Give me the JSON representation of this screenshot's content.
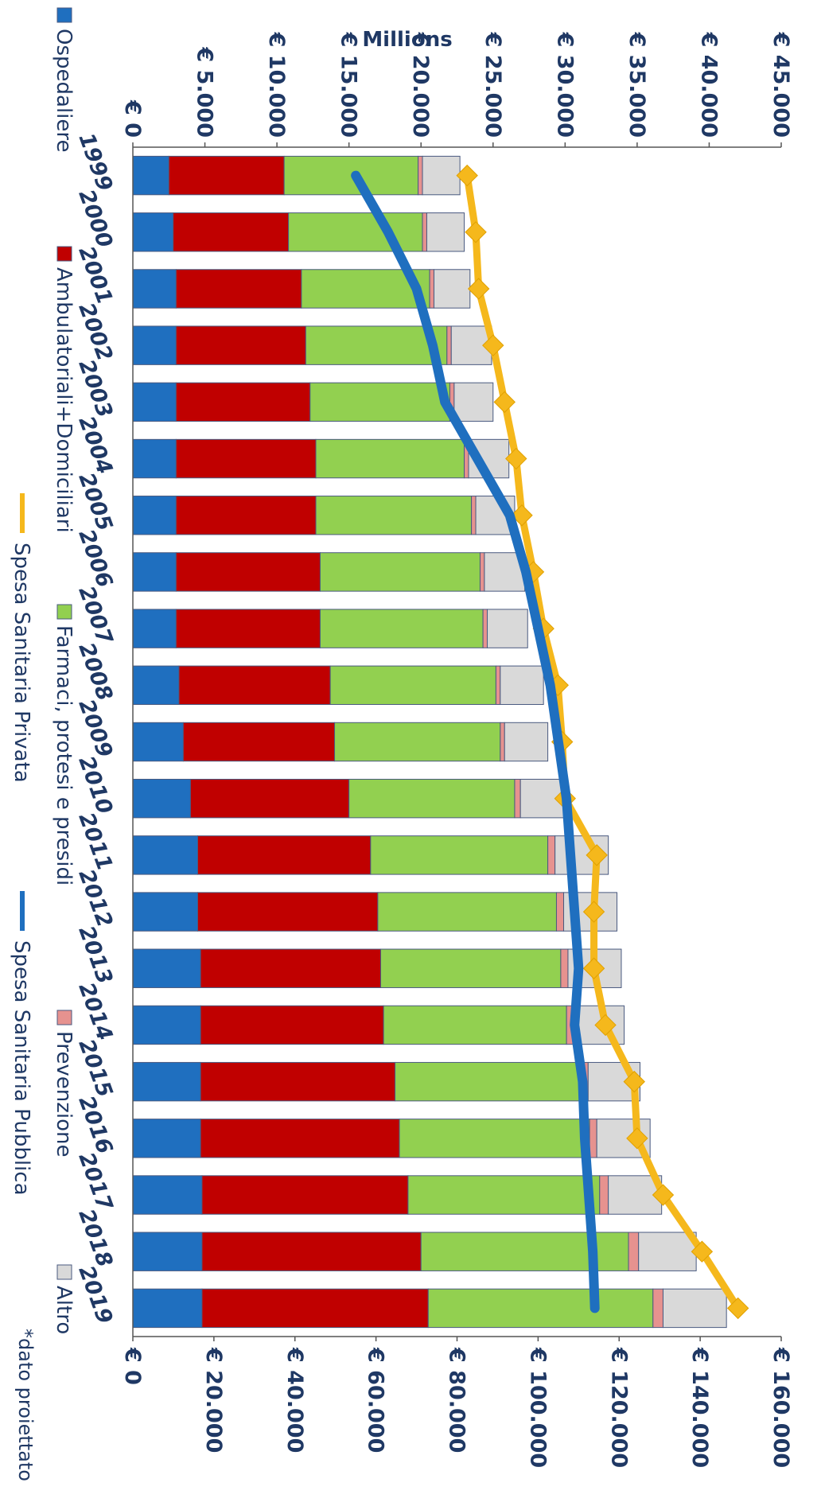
{
  "chart_data": {
    "type": "bar",
    "stacked": true,
    "categories": [
      "1999",
      "2000",
      "2001",
      "2002",
      "2003",
      "2004",
      "2005",
      "2006",
      "2007",
      "2008",
      "2009",
      "2010",
      "2011",
      "2012",
      "2013",
      "2014",
      "2015",
      "2016",
      "2017",
      "2018",
      "2019"
    ],
    "ylabel": "Millions",
    "y_left_ticks": [
      "€ 0",
      "€ 5.000",
      "€ 10.000",
      "€ 15.000",
      "€ 20.000",
      "€ 25.000",
      "€ 30.000",
      "€ 35.000",
      "€ 40.000",
      "€ 45.000"
    ],
    "y_right_ticks": [
      "€ 0",
      "€ 20.000",
      "€ 40.000",
      "€ 60.000",
      "€ 80.000",
      "€ 100.000",
      "€ 120.000",
      "€ 140.000",
      "€ 160.000"
    ],
    "ylim_left": [
      0,
      45000
    ],
    "ylim_right": [
      0,
      160000
    ],
    "series": [
      {
        "name": "Ospedaliere",
        "axis": "left",
        "color": "#1f6fbf",
        "values": [
          2500,
          2800,
          3000,
          3000,
          3000,
          3000,
          3000,
          3000,
          3000,
          3200,
          3500,
          4000,
          4500,
          4500,
          4700,
          4700,
          4700,
          4700,
          4800,
          4800,
          4800
        ]
      },
      {
        "name": "Ambulatoriali+Domiciliari",
        "axis": "left",
        "color": "#c00000",
        "values": [
          8000,
          8000,
          8700,
          9000,
          9300,
          9700,
          9700,
          10000,
          10000,
          10500,
          10500,
          11000,
          12000,
          12500,
          12500,
          12700,
          13500,
          13800,
          14300,
          15200,
          15700
        ]
      },
      {
        "name": "Farmaci, protesi e presidi",
        "axis": "left",
        "color": "#92d050",
        "values": [
          9300,
          9300,
          8900,
          9800,
          9700,
          10300,
          10800,
          11100,
          11300,
          11500,
          11500,
          11500,
          12300,
          12400,
          12500,
          12700,
          12900,
          13200,
          13300,
          14400,
          15600
        ]
      },
      {
        "name": "Prevenzione",
        "axis": "left",
        "color": "#e6928f",
        "values": [
          300,
          300,
          300,
          300,
          300,
          300,
          300,
          300,
          300,
          300,
          300,
          400,
          500,
          500,
          500,
          500,
          500,
          500,
          600,
          700,
          700
        ]
      },
      {
        "name": "Altro",
        "axis": "left",
        "color": "#d9d9d9",
        "values": [
          2600,
          2600,
          2500,
          2800,
          2700,
          2800,
          2700,
          2800,
          2800,
          3000,
          3000,
          3100,
          3700,
          3700,
          3700,
          3500,
          3600,
          3700,
          3700,
          4000,
          4400
        ]
      },
      {
        "name": "Spesa Sanitaria Privata",
        "axis": "left",
        "type": "line",
        "color": "#f5b81c",
        "values": [
          23200,
          23800,
          24000,
          25000,
          25800,
          26600,
          27000,
          27800,
          28500,
          29500,
          29800,
          30000,
          32200,
          32000,
          32000,
          32800,
          34800,
          35000,
          36800,
          39500,
          42000
        ]
      },
      {
        "name": "Spesa Sanitaria Pubblica",
        "axis": "right",
        "type": "line",
        "color": "#1f6fbf",
        "values": [
          55000,
          63000,
          70000,
          74000,
          77000,
          85000,
          93000,
          97000,
          100000,
          103000,
          105000,
          107000,
          108000,
          109000,
          110000,
          109000,
          111000,
          111500,
          112500,
          113500,
          114000
        ]
      }
    ],
    "legend_position": "bottom",
    "note": "*dato proiettato"
  }
}
